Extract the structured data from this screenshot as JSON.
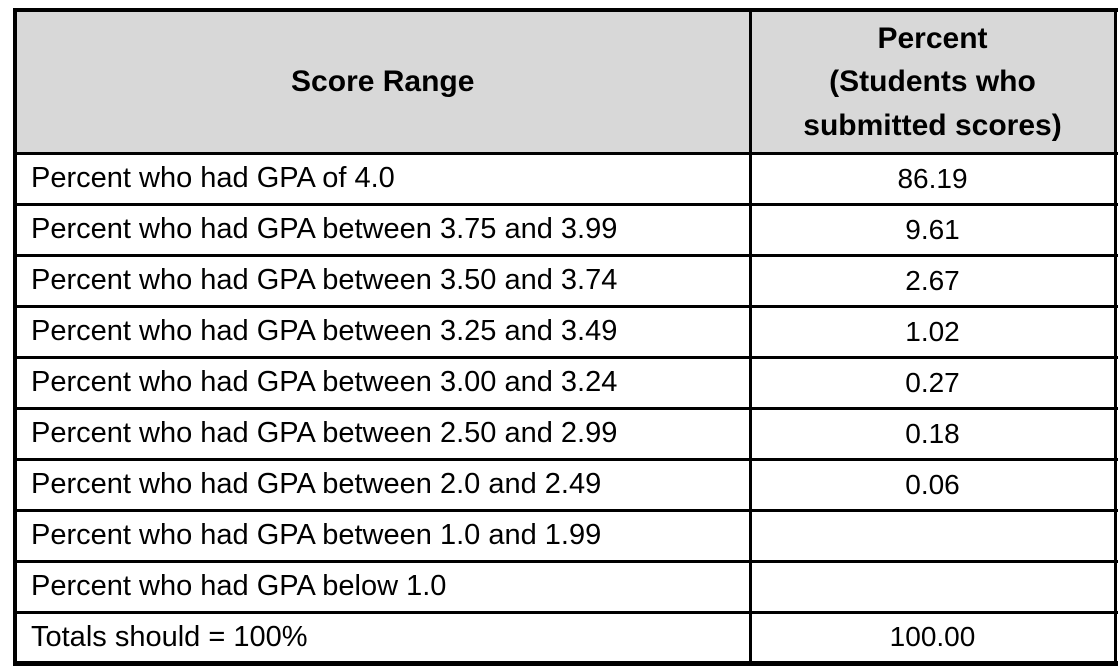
{
  "table": {
    "columns": [
      {
        "label": "Score Range"
      },
      {
        "label": "Percent\n(Students who\nsubmitted scores)"
      }
    ],
    "rows": [
      {
        "label": "Percent who had GPA of 4.0",
        "value": "86.19"
      },
      {
        "label": "Percent who had GPA between 3.75 and 3.99",
        "value": "9.61"
      },
      {
        "label": "Percent who had GPA between 3.50 and 3.74",
        "value": "2.67"
      },
      {
        "label": "Percent who had GPA between 3.25 and 3.49",
        "value": "1.02"
      },
      {
        "label": "Percent who had GPA between 3.00 and 3.24",
        "value": "0.27"
      },
      {
        "label": "Percent who had GPA between 2.50 and 2.99",
        "value": "0.18"
      },
      {
        "label": "Percent who had GPA between 2.0 and 2.49",
        "value": "0.06"
      },
      {
        "label": "Percent who had GPA between 1.0 and 1.99",
        "value": ""
      },
      {
        "label": "Percent who had GPA below 1.0",
        "value": ""
      },
      {
        "label": "Totals should = 100%",
        "value": "100.00"
      }
    ],
    "colors": {
      "header_bg": "#d8d8d8",
      "border": "#000000",
      "row_bg": "#ffffff",
      "text": "#000000"
    }
  },
  "chart_data": {
    "type": "table",
    "title": "",
    "columns": [
      "Score Range",
      "Percent (Students who submitted scores)"
    ],
    "rows": [
      [
        "Percent who had GPA of 4.0",
        86.19
      ],
      [
        "Percent who had GPA between 3.75 and 3.99",
        9.61
      ],
      [
        "Percent who had GPA between 3.50 and 3.74",
        2.67
      ],
      [
        "Percent who had GPA between 3.25 and 3.49",
        1.02
      ],
      [
        "Percent who had GPA between 3.00 and 3.24",
        0.27
      ],
      [
        "Percent who had GPA between 2.50 and 2.99",
        0.18
      ],
      [
        "Percent who had GPA between 2.0 and 2.49",
        0.06
      ],
      [
        "Percent who had GPA between 1.0 and 1.99",
        null
      ],
      [
        "Percent who had GPA below 1.0",
        null
      ],
      [
        "Totals should = 100%",
        100.0
      ]
    ]
  }
}
